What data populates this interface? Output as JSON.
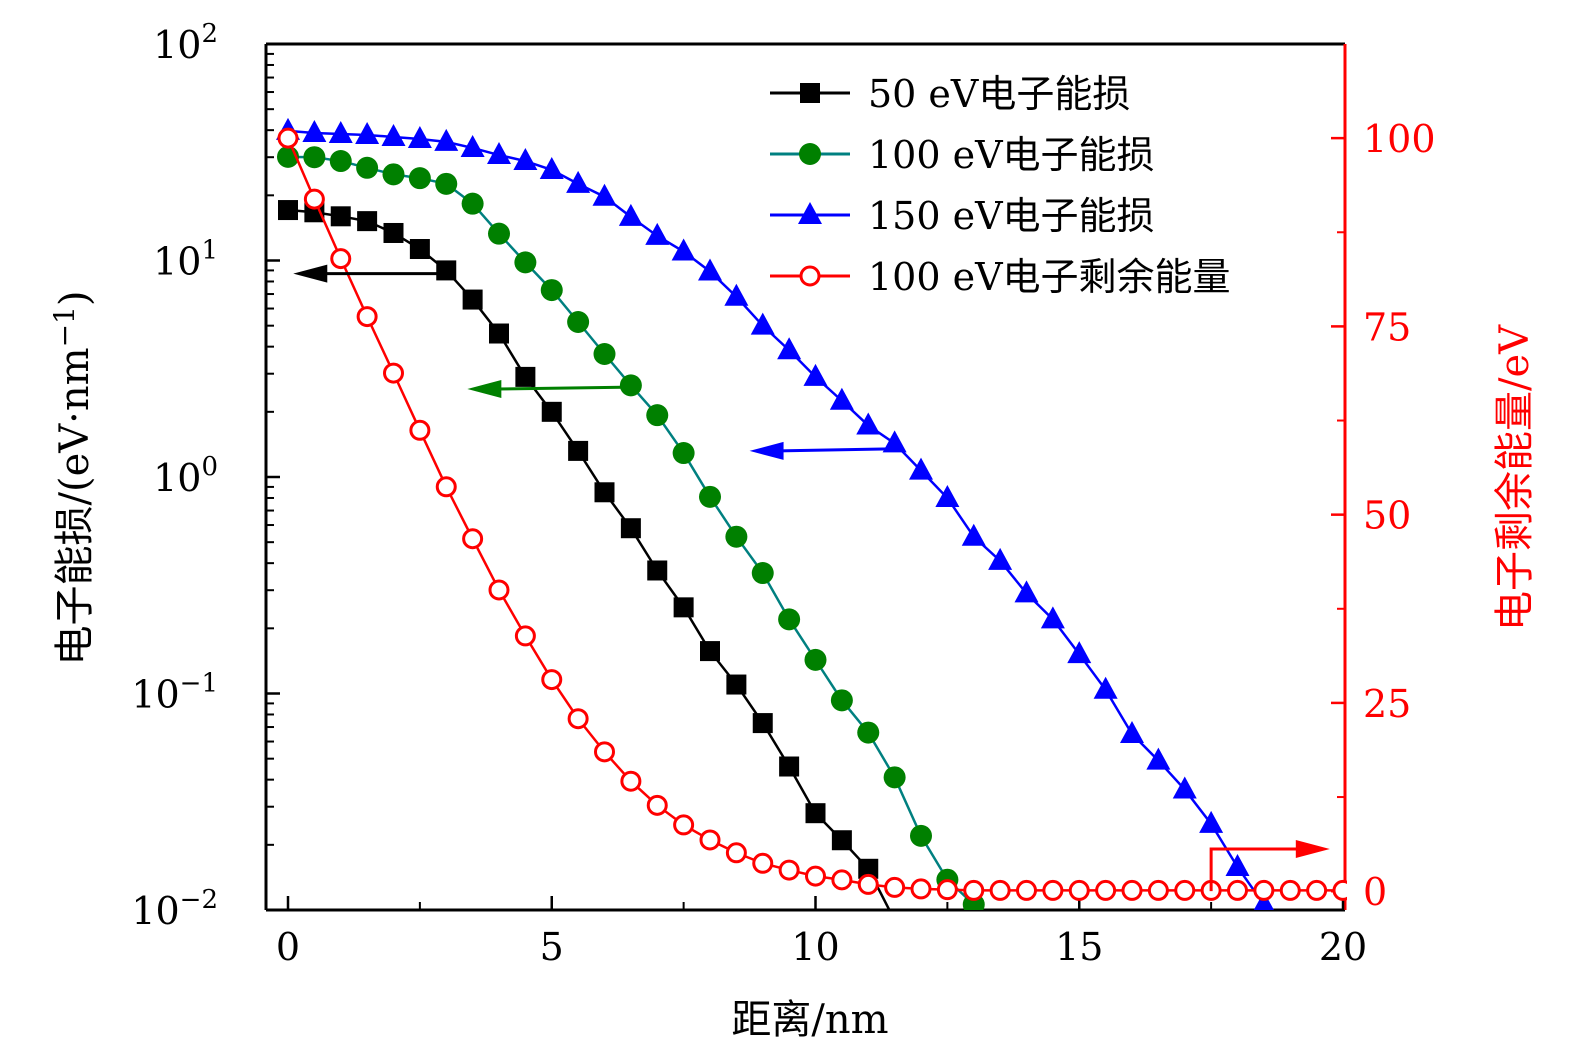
{
  "chart_data": {
    "type": "line",
    "title": "",
    "xlabel": "距离/nm",
    "ylabel_left": "电子能损/(eV·nm⁻¹)",
    "ylabel_left_parts": {
      "main": "电子能损/(eV·nm",
      "sup": "−1",
      "close": ")"
    },
    "ylabel_right": "电子剩余能量/eV",
    "xlim": [
      -0.4,
      20
    ],
    "ylim_left": [
      0.01,
      100
    ],
    "ylim_left_scale": "log",
    "ylim_right": [
      -2.5,
      112.5
    ],
    "x_ticks": [
      0,
      5,
      10,
      15,
      20
    ],
    "x_tick_labels": [
      "0",
      "5",
      "10",
      "15",
      "20"
    ],
    "y_left_ticks": [
      {
        "value": 100,
        "base": "10",
        "exp": "2"
      },
      {
        "value": 10,
        "base": "10",
        "exp": "1"
      },
      {
        "value": 1,
        "base": "10",
        "exp": "0"
      },
      {
        "value": 0.1,
        "base": "10",
        "exp": "−1"
      },
      {
        "value": 0.01,
        "base": "10",
        "exp": "−2"
      }
    ],
    "y_right_ticks": [
      0,
      25,
      50,
      75,
      100
    ],
    "y_right_tick_labels": [
      "0",
      "25",
      "50",
      "75",
      "100"
    ],
    "grid": false,
    "legend_position": "top-right",
    "series": [
      {
        "name": "50 eV电子能损",
        "axis": "left",
        "marker": "square",
        "line_color": "#000000",
        "marker_color": "#000000",
        "x": [
          0,
          0.5,
          1,
          1.5,
          2,
          2.5,
          3,
          3.5,
          4,
          4.5,
          5,
          5.5,
          6,
          6.5,
          7,
          7.5,
          8,
          8.5,
          9,
          9.5,
          10,
          10.5,
          11
        ],
        "y": [
          17.1,
          16.7,
          16.0,
          15.2,
          13.4,
          11.3,
          9.0,
          6.6,
          4.6,
          2.9,
          2.0,
          1.32,
          0.85,
          0.58,
          0.37,
          0.25,
          0.157,
          0.11,
          0.073,
          0.046,
          0.028,
          0.021,
          0.0155
        ],
        "line_tail": [
          [
            11.4,
            0.01
          ]
        ]
      },
      {
        "name": "100 eV电子能损",
        "axis": "left",
        "marker": "circle",
        "line_color": "#008080",
        "marker_color": "#008000",
        "x": [
          0,
          0.5,
          1,
          1.5,
          2,
          2.5,
          3,
          3.5,
          4,
          4.5,
          5,
          5.5,
          6,
          6.5,
          7,
          7.5,
          8,
          8.5,
          9,
          9.5,
          10,
          10.5,
          11,
          11.5,
          12,
          12.5,
          13
        ],
        "y": [
          30.1,
          30.0,
          28.8,
          26.8,
          25.0,
          24.0,
          22.6,
          18.3,
          13.3,
          9.8,
          7.3,
          5.2,
          3.7,
          2.65,
          1.93,
          1.29,
          0.81,
          0.53,
          0.36,
          0.22,
          0.143,
          0.093,
          0.066,
          0.041,
          0.022,
          0.0138,
          0.0106
        ]
      },
      {
        "name": "150 eV电子能损",
        "axis": "left",
        "marker": "triangle",
        "line_color": "#0000ff",
        "marker_color": "#0000ff",
        "x": [
          0,
          0.5,
          1,
          1.5,
          2,
          2.5,
          3,
          3.5,
          4,
          4.5,
          5,
          5.5,
          6,
          6.5,
          7,
          7.5,
          8,
          8.5,
          9,
          9.5,
          10,
          10.5,
          11,
          11.5,
          12,
          12.5,
          13,
          13.5,
          14,
          14.5,
          15,
          15.5,
          16,
          16.5,
          17,
          17.5,
          18,
          18.5
        ],
        "y": [
          39.7,
          38.8,
          38.4,
          38.0,
          37.2,
          36.4,
          35.3,
          33.1,
          30.7,
          28.8,
          26.2,
          22.6,
          19.7,
          15.9,
          13.0,
          11.0,
          8.9,
          6.8,
          5.0,
          3.85,
          2.9,
          2.25,
          1.73,
          1.43,
          1.07,
          0.8,
          0.53,
          0.41,
          0.29,
          0.22,
          0.152,
          0.104,
          0.065,
          0.049,
          0.036,
          0.025,
          0.0158,
          0.0106
        ]
      },
      {
        "name": "100 eV电子剩余能量",
        "axis": "right",
        "marker": "open-circle",
        "line_color": "#ff0000",
        "marker_color": "#ff0000",
        "x": [
          0,
          0.5,
          1,
          1.5,
          2,
          2.5,
          3,
          3.5,
          4,
          4.5,
          5,
          5.5,
          6,
          6.5,
          7,
          7.5,
          8,
          8.5,
          9,
          9.5,
          10,
          10.5,
          11,
          11.5,
          12,
          12.5,
          13,
          13.5,
          14,
          14.5,
          15,
          15.5,
          16,
          16.5,
          17,
          17.5,
          18,
          18.5,
          19,
          19.5,
          20
        ],
        "y": [
          100,
          91.9,
          84.0,
          76.3,
          68.8,
          61.2,
          53.7,
          46.8,
          40.0,
          33.9,
          28.1,
          22.9,
          18.5,
          14.6,
          11.4,
          8.8,
          6.8,
          5.1,
          3.7,
          2.8,
          2.0,
          1.5,
          0.9,
          0.5,
          0.3,
          0.2,
          0.1,
          0.1,
          0.1,
          0.1,
          0.1,
          0.1,
          0.1,
          0.1,
          0.1,
          0.1,
          0.1,
          0.1,
          0.1,
          0.1,
          0.1
        ]
      }
    ],
    "annotations": [
      {
        "type": "arrow",
        "series": "50 eV电子能损",
        "direction": "left",
        "from": [
          3.05,
          8.7
        ],
        "to": [
          0.1,
          8.7
        ],
        "color": "#000000"
      },
      {
        "type": "arrow",
        "series": "100 eV电子能损",
        "direction": "left",
        "from": [
          6.5,
          2.6
        ],
        "to": [
          3.4,
          2.55
        ],
        "color": "#008000"
      },
      {
        "type": "arrow",
        "series": "150 eV电子能损",
        "direction": "left",
        "from": [
          11.5,
          1.35
        ],
        "to": [
          8.75,
          1.32
        ],
        "color": "#0000ff"
      },
      {
        "type": "arrow",
        "series": "100 eV电子剩余能量",
        "direction": "right",
        "corner_x": 17.5,
        "from_y_right": 0,
        "y_right": 5.6,
        "to_x": 19.75,
        "color": "#ff0000"
      }
    ],
    "colors": {
      "axis": "#000000",
      "right_axis": "#ff0000"
    }
  }
}
